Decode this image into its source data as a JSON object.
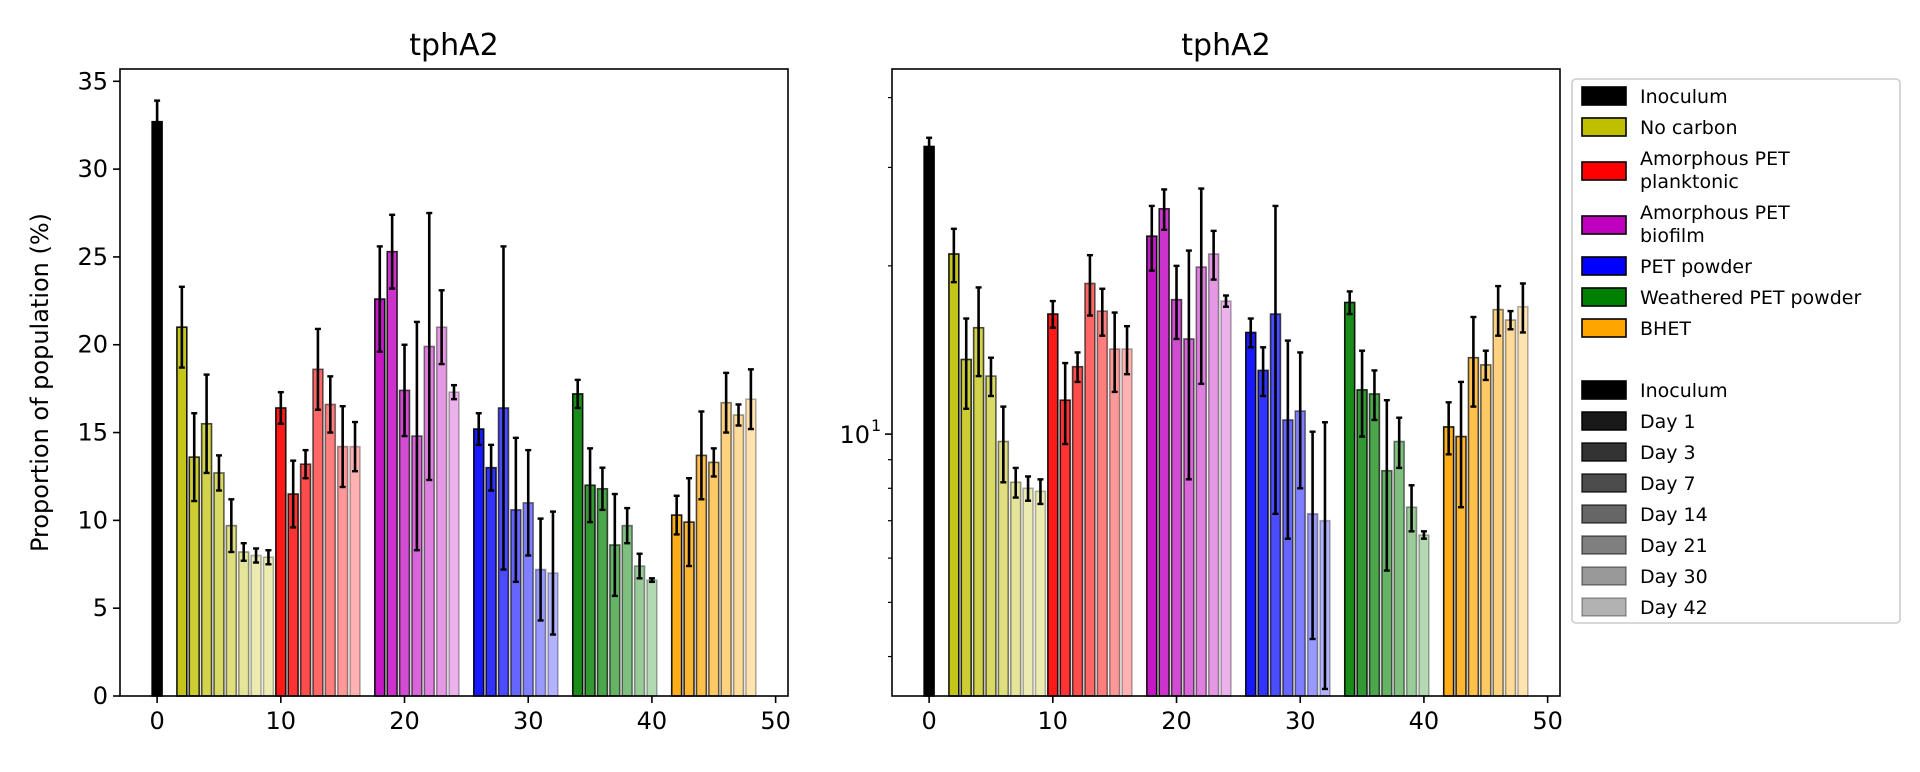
{
  "chart_data": [
    {
      "type": "bar",
      "title": "tphA2",
      "xlabel": "",
      "ylabel": "Proportion of population (%)",
      "yscale": "linear",
      "xlim": [
        -3,
        51
      ],
      "ylim": [
        0,
        35.7
      ],
      "xticks": [
        "0",
        "10",
        "20",
        "30",
        "40",
        "50"
      ],
      "yticks": [
        "0",
        "5",
        "10",
        "15",
        "20",
        "25",
        "30",
        "35"
      ],
      "series": [
        {
          "name": "Inoculum",
          "x": [
            0
          ],
          "values": [
            32.7
          ],
          "err": [
            1.2
          ]
        },
        {
          "name": "No carbon",
          "x": [
            2,
            3,
            4,
            5,
            6,
            7,
            8,
            9
          ],
          "values": [
            21.0,
            13.6,
            15.5,
            12.7,
            9.7,
            8.2,
            8.0,
            7.9
          ],
          "err": [
            2.3,
            2.5,
            2.8,
            1.0,
            1.5,
            0.5,
            0.4,
            0.4
          ]
        },
        {
          "name": "Amorphous PET planktonic",
          "x": [
            10,
            11,
            12,
            13,
            14,
            15,
            16
          ],
          "values": [
            16.4,
            11.5,
            13.2,
            18.6,
            16.6,
            14.2,
            14.2
          ],
          "err": [
            0.9,
            1.9,
            0.8,
            2.3,
            1.6,
            2.3,
            1.4
          ]
        },
        {
          "name": "Amorphous PET biofilm",
          "x": [
            18,
            19,
            20,
            21,
            22,
            23,
            24
          ],
          "values": [
            22.6,
            25.3,
            17.4,
            14.8,
            19.9,
            21.0,
            17.3
          ],
          "err": [
            3.0,
            2.1,
            2.6,
            6.5,
            7.6,
            2.1,
            0.4
          ]
        },
        {
          "name": "PET powder",
          "x": [
            26,
            27,
            28,
            29,
            30,
            31,
            32
          ],
          "values": [
            15.2,
            13.0,
            16.4,
            10.6,
            11.0,
            7.2,
            7.0
          ],
          "err": [
            0.9,
            1.3,
            9.2,
            4.1,
            3.0,
            2.9,
            3.5
          ]
        },
        {
          "name": "Weathered PET powder",
          "x": [
            34,
            35,
            36,
            37,
            38,
            39,
            40
          ],
          "values": [
            17.2,
            12.0,
            11.8,
            8.6,
            9.7,
            7.4,
            6.6
          ],
          "err": [
            0.8,
            2.1,
            1.2,
            2.9,
            1.0,
            0.7,
            0.1
          ]
        },
        {
          "name": "BHET",
          "x": [
            42,
            43,
            44,
            45,
            46,
            47,
            48
          ],
          "values": [
            10.3,
            9.9,
            13.7,
            13.3,
            16.7,
            16.0,
            16.9
          ],
          "err": [
            1.1,
            2.5,
            2.5,
            0.8,
            1.7,
            0.6,
            1.7
          ]
        }
      ]
    },
    {
      "type": "bar",
      "title": "tphA2",
      "xlabel": "",
      "ylabel": "",
      "yscale": "log",
      "xlim": [
        -3,
        51
      ],
      "ylim": [
        3.4,
        45
      ],
      "xticks": [
        "0",
        "10",
        "20",
        "30",
        "40",
        "50"
      ],
      "ytick_label": "10",
      "ytick_label_exponent": "1",
      "series_ref": "same data as left panel"
    }
  ],
  "legend": {
    "position": "right",
    "treatments": [
      {
        "label": "Inoculum",
        "color": "#000000"
      },
      {
        "label": "No carbon",
        "color": "#bfbf00"
      },
      {
        "label": "Amorphous PET\nplanktonic",
        "color": "#ff0000"
      },
      {
        "label": "Amorphous PET\nbiofilm",
        "color": "#bf00bf"
      },
      {
        "label": "PET powder",
        "color": "#0000ff"
      },
      {
        "label": "Weathered PET powder",
        "color": "#008000"
      },
      {
        "label": "BHET",
        "color": "#ffa500"
      }
    ],
    "days": [
      {
        "label": "Inoculum",
        "alpha": 1.0
      },
      {
        "label": "Day 1",
        "alpha": 0.9
      },
      {
        "label": "Day 3",
        "alpha": 0.8
      },
      {
        "label": "Day 7",
        "alpha": 0.7
      },
      {
        "label": "Day 14",
        "alpha": 0.6
      },
      {
        "label": "Day 21",
        "alpha": 0.5
      },
      {
        "label": "Day 30",
        "alpha": 0.4
      },
      {
        "label": "Day 42",
        "alpha": 0.3
      }
    ]
  },
  "colors": {
    "inoculum": "#000000",
    "no_carbon": "#bfbf00",
    "amorphous_planktonic": "#ff0000",
    "amorphous_biofilm": "#bf00bf",
    "pet_powder": "#0000ff",
    "weathered": "#008000",
    "bhet": "#ffa500"
  },
  "alpha_sequence": [
    1.0,
    0.9,
    0.8,
    0.7,
    0.6,
    0.5,
    0.4,
    0.3
  ]
}
